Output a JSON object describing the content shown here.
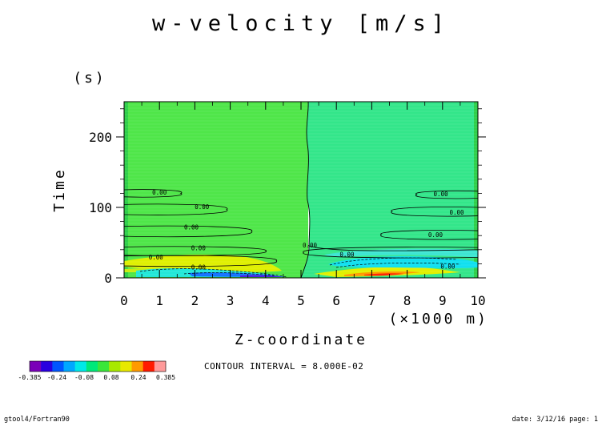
{
  "chart_data": {
    "type": "contour",
    "title": "w-velocity [m/s]",
    "xlabel": "Z-coordinate",
    "x_unit": "(×1000 m)",
    "ylabel": "Time",
    "y_unit": "(s)",
    "xlim": [
      0,
      10
    ],
    "ylim": [
      0,
      250
    ],
    "x_ticks": [
      "0",
      "1",
      "2",
      "3",
      "4",
      "5",
      "6",
      "7",
      "8",
      "9",
      "10"
    ],
    "y_ticks": [
      "0",
      "100",
      "200"
    ],
    "contour_interval": "CONTOUR INTERVAL = 8.000E-02",
    "contour_labels": [
      {
        "text": "0.00",
        "x": 1.0,
        "y": 118
      },
      {
        "text": "0.00",
        "x": 2.2,
        "y": 98
      },
      {
        "text": "0.00",
        "x": 1.9,
        "y": 69
      },
      {
        "text": "0.00",
        "x": 2.1,
        "y": 39
      },
      {
        "text": "0.00",
        "x": 0.9,
        "y": 26
      },
      {
        "text": "0.00",
        "x": 2.1,
        "y": 12
      },
      {
        "text": "0.00",
        "x": 8.95,
        "y": 116
      },
      {
        "text": "0.00",
        "x": 9.4,
        "y": 90
      },
      {
        "text": "0.00",
        "x": 8.8,
        "y": 58
      },
      {
        "text": "0.00",
        "x": 5.25,
        "y": 43
      },
      {
        "text": "0.00",
        "x": 6.3,
        "y": 30
      },
      {
        "text": "0.00",
        "x": 9.15,
        "y": 13
      }
    ],
    "colorbar": {
      "labels": [
        "-0.385",
        "-0.24",
        "-0.08",
        "0.08",
        "0.24",
        "0.385"
      ],
      "colors": [
        "#7a00b8",
        "#2a00e0",
        "#0055ff",
        "#00a8ff",
        "#00e8e8",
        "#00e87a",
        "#3ae63a",
        "#a8e800",
        "#e8e800",
        "#ff9a00",
        "#ff1a00",
        "#ff9a9a"
      ]
    }
  },
  "footer": {
    "left": "gtool4/Fortran90",
    "right": "date: 3/12/16 page: 1"
  }
}
